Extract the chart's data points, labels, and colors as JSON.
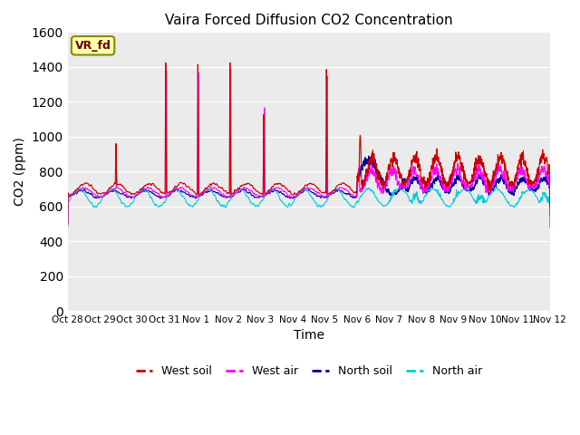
{
  "title": "Vaira Forced Diffusion CO2 Concentration",
  "xlabel": "Time",
  "ylabel": "CO2 (ppm)",
  "ylim": [
    0,
    1600
  ],
  "yticks": [
    0,
    200,
    400,
    600,
    800,
    1000,
    1200,
    1400,
    1600
  ],
  "xtick_labels": [
    "Oct 28",
    "Oct 29",
    "Oct 30",
    "Oct 31",
    "Nov 1",
    "Nov 2",
    "Nov 3",
    "Nov 4",
    "Nov 5",
    "Nov 6",
    "Nov 7",
    "Nov 8",
    "Nov 9",
    "Nov 10",
    "Nov 11",
    "Nov 12"
  ],
  "legend_labels": [
    "West soil",
    "West air",
    "North soil",
    "North air"
  ],
  "line_colors": [
    "#cc0000",
    "#ff00ff",
    "#000099",
    "#00ccdd"
  ],
  "label_box_text": "VR_fd",
  "label_box_color": "#ffffaa",
  "label_box_edgecolor": "#888800",
  "background_color": "#ebebeb",
  "grid_color": "#ffffff",
  "seed": 42
}
